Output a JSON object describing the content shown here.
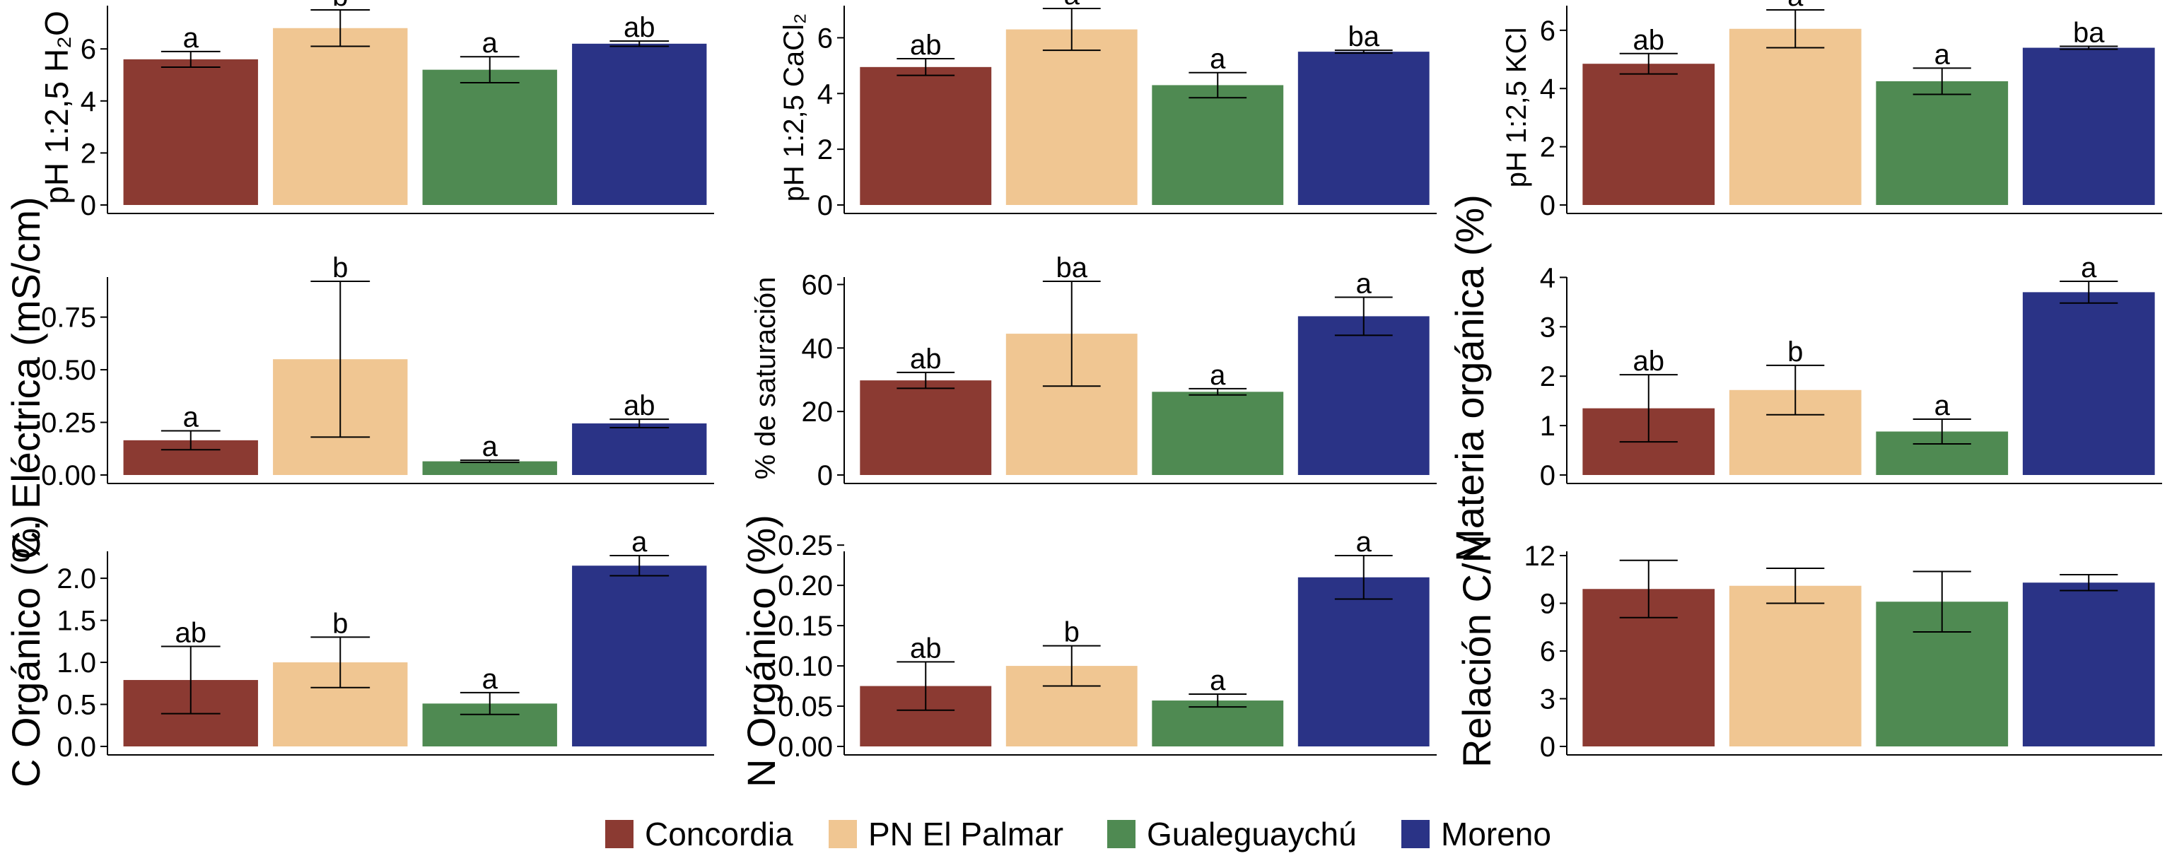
{
  "legend": {
    "entries": [
      {
        "name": "Concordia",
        "color": "#8B3A32"
      },
      {
        "name": "PN El Palmar",
        "color": "#F0C692"
      },
      {
        "name": "Gualeguaychú",
        "color": "#4F8A52"
      },
      {
        "name": "Moreno",
        "color": "#2A3386"
      }
    ]
  },
  "chart_data": [
    {
      "type": "bar",
      "ylabel": "pH 1:2,5 H₂O",
      "categories": [
        "Concordia",
        "PN El Palmar",
        "Gualeguaychú",
        "Moreno"
      ],
      "values": [
        5.6,
        6.8,
        5.2,
        6.2
      ],
      "errors": [
        0.3,
        0.7,
        0.5,
        0.1
      ],
      "letters": [
        "a",
        "b",
        "a",
        "ab"
      ],
      "ylim": [
        0,
        7.5
      ],
      "yticks": [
        0,
        2,
        4,
        6
      ],
      "ytick_labels": [
        "0",
        "2",
        "4",
        "6"
      ]
    },
    {
      "type": "bar",
      "ylabel": "pH 1:2,5 CaCl₂",
      "categories": [
        "Concordia",
        "PN El Palmar",
        "Gualeguaychú",
        "Moreno"
      ],
      "values": [
        4.95,
        6.3,
        4.3,
        5.5
      ],
      "errors": [
        0.3,
        0.75,
        0.45,
        0.05
      ],
      "letters": [
        "ab",
        "a",
        "a",
        "ba"
      ],
      "ylim": [
        0,
        7.0
      ],
      "yticks": [
        0,
        2,
        4,
        6
      ],
      "ytick_labels": [
        "0",
        "2",
        "4",
        "6"
      ]
    },
    {
      "type": "bar",
      "ylabel": "pH 1:2,5 KCl",
      "categories": [
        "Concordia",
        "PN El Palmar",
        "Gualeguaychú",
        "Moreno"
      ],
      "values": [
        4.85,
        6.05,
        4.25,
        5.4
      ],
      "errors": [
        0.35,
        0.65,
        0.45,
        0.05
      ],
      "letters": [
        "ab",
        "a",
        "a",
        "ba"
      ],
      "ylim": [
        0,
        6.7
      ],
      "yticks": [
        0,
        2,
        4,
        6
      ],
      "ytick_labels": [
        "0",
        "2",
        "4",
        "6"
      ]
    },
    {
      "type": "bar",
      "ylabel": "C. Eléctrica (mS/cm)",
      "categories": [
        "Concordia",
        "PN El Palmar",
        "Gualeguaychú",
        "Moreno"
      ],
      "values": [
        0.165,
        0.55,
        0.065,
        0.245
      ],
      "errors": [
        0.045,
        0.37,
        0.005,
        0.02
      ],
      "letters": [
        "a",
        "b",
        "a",
        "ab"
      ],
      "ylim": [
        0,
        0.92
      ],
      "yticks": [
        0,
        0.25,
        0.5,
        0.75
      ],
      "ytick_labels": [
        "0.00",
        "0.25",
        "0.50",
        "0.75"
      ]
    },
    {
      "type": "bar",
      "ylabel": "% de saturación",
      "categories": [
        "Concordia",
        "PN El Palmar",
        "Gualeguaychú",
        "Moreno"
      ],
      "values": [
        29.8,
        44.5,
        26.2,
        50.0
      ],
      "errors": [
        2.5,
        16.5,
        1.0,
        6.0
      ],
      "letters": [
        "ab",
        "ba",
        "a",
        "a"
      ],
      "ylim": [
        0,
        61
      ],
      "yticks": [
        0,
        20,
        40,
        60
      ],
      "ytick_labels": [
        "0",
        "20",
        "40",
        "60"
      ]
    },
    {
      "type": "bar",
      "ylabel": "Materia orgánica (%)",
      "categories": [
        "Concordia",
        "PN El Palmar",
        "Gualeguaychú",
        "Moreno"
      ],
      "values": [
        1.35,
        1.72,
        0.88,
        3.7
      ],
      "errors": [
        0.68,
        0.5,
        0.25,
        0.22
      ],
      "letters": [
        "ab",
        "b",
        "a",
        "a"
      ],
      "ylim": [
        0,
        3.92
      ],
      "yticks": [
        0,
        1,
        2,
        3,
        4
      ],
      "ytick_labels": [
        "0",
        "1",
        "2",
        "3",
        "4"
      ]
    },
    {
      "type": "bar",
      "ylabel": "C Orgánico (%)",
      "categories": [
        "Concordia",
        "PN El Palmar",
        "Gualeguaychú",
        "Moreno"
      ],
      "values": [
        0.79,
        1.0,
        0.51,
        2.15
      ],
      "errors": [
        0.4,
        0.3,
        0.13,
        0.12
      ],
      "letters": [
        "ab",
        "b",
        "a",
        "a"
      ],
      "ylim": [
        0,
        2.27
      ],
      "yticks": [
        0,
        0.5,
        1,
        1.5,
        2
      ],
      "ytick_labels": [
        "0.0",
        "0.5",
        "1.0",
        "1.5",
        "2.0"
      ]
    },
    {
      "type": "bar",
      "ylabel": "N Orgánico (%)",
      "categories": [
        "Concordia",
        "PN El Palmar",
        "Gualeguaychú",
        "Moreno"
      ],
      "values": [
        0.075,
        0.1,
        0.057,
        0.21
      ],
      "errors": [
        0.03,
        0.025,
        0.008,
        0.027
      ],
      "letters": [
        "ab",
        "b",
        "a",
        "a"
      ],
      "ylim": [
        0,
        0.237
      ],
      "yticks": [
        0,
        0.05,
        0.1,
        0.15,
        0.2,
        0.25
      ],
      "ytick_labels": [
        "0.00",
        "0.05",
        "0.10",
        "0.15",
        "0.20",
        "0.25"
      ]
    },
    {
      "type": "bar",
      "ylabel": "Relación C/N",
      "categories": [
        "Concordia",
        "PN El Palmar",
        "Gualeguaychú",
        "Moreno"
      ],
      "values": [
        9.9,
        10.1,
        9.1,
        10.3
      ],
      "errors": [
        1.8,
        1.1,
        1.9,
        0.5
      ],
      "letters": [
        "",
        "",
        "",
        ""
      ],
      "ylim": [
        0,
        12
      ],
      "yticks": [
        0,
        3,
        6,
        9,
        12
      ],
      "ytick_labels": [
        "0",
        "3",
        "6",
        "9",
        "12"
      ]
    }
  ]
}
